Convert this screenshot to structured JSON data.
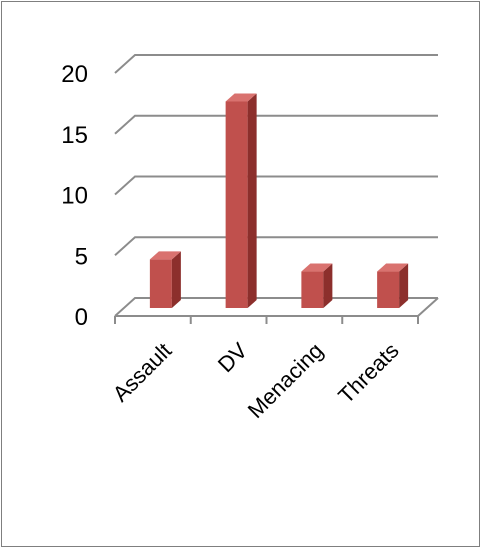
{
  "chart_data": {
    "type": "bar",
    "categories": [
      "Assault",
      "DV",
      "Menacing",
      "Threats"
    ],
    "values": [
      4,
      17,
      3,
      3
    ],
    "ylim": [
      0,
      20
    ],
    "yticks": [
      0,
      5,
      10,
      15,
      20
    ],
    "title": "",
    "xlabel": "",
    "ylabel": "",
    "grid": true,
    "legend": "none",
    "style": "3d-column"
  },
  "colors": {
    "bar_front": "#c0504d",
    "bar_side": "#8c2f2c",
    "bar_top": "#d9726f",
    "grid": "#8c8c8c",
    "frame": "#7f7f7f"
  }
}
